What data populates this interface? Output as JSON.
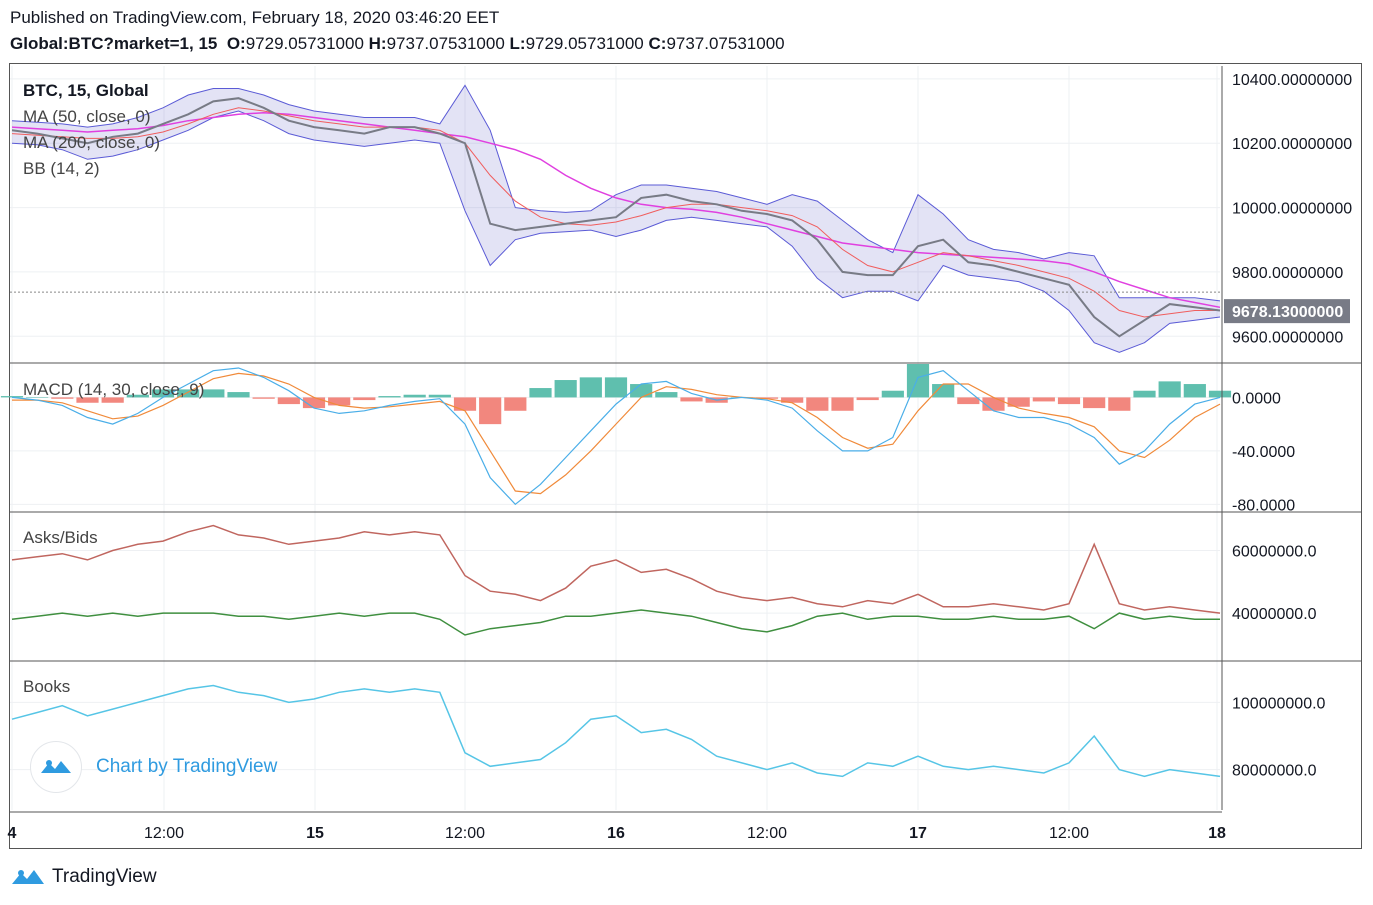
{
  "header": {
    "published": "Published on TradingView.com, February 18, 2020 03:46:20 EET",
    "symbol": "Global:BTC?market=1, 15",
    "o_label": "O:",
    "o_value": "9729.05731000",
    "h_label": "H:",
    "h_value": "9737.07531000",
    "l_label": "L:",
    "l_value": "9729.05731000",
    "c_label": "C:",
    "c_value": "9737.07531000"
  },
  "legend": {
    "title": "BTC, 15, Global",
    "ma50": "MA (50, close, 0)",
    "ma200": "MA (200, close, 0)",
    "bb": "BB (14, 2)",
    "macd": "MACD (14, 30, close, 9)",
    "asks_bids": "Asks/Bids",
    "books": "Books"
  },
  "price_tag": "9678.13000000",
  "watermark": "Chart by TradingView",
  "footer_brand": "TradingView",
  "icons": [
    "tradingview-logo-icon"
  ],
  "colors": {
    "price": "#787b86",
    "ma50": "#f05d5d",
    "ma200": "#e040e0",
    "bb": "#5b5bd6",
    "bb_fill": "rgba(100,100,200,0.18)",
    "macd": "#4aaee8",
    "signal": "#f08a3a",
    "hist_pos": "#5fbfae",
    "hist_neg": "#f2877e",
    "asks": "#c0665f",
    "bids": "#3f8f3f",
    "books": "#56c5e6"
  },
  "chart_data": [
    {
      "type": "line",
      "name": "price",
      "x_ticks": [
        "4",
        "12:00",
        "15",
        "12:00",
        "16",
        "12:00",
        "17",
        "12:00",
        "18"
      ],
      "y_ticks": [
        "10400.00000000",
        "10200.00000000",
        "10000.00000000",
        "9800.00000000",
        "9600.00000000"
      ],
      "ylim": [
        9520,
        10440
      ],
      "last": 9678.13,
      "price_line": 9737.08,
      "series": [
        {
          "name": "close",
          "values": [
            10240,
            10230,
            10215,
            10200,
            10220,
            10230,
            10260,
            10290,
            10330,
            10340,
            10310,
            10270,
            10250,
            10240,
            10230,
            10250,
            10250,
            10230,
            10200,
            9950,
            9930,
            9940,
            9950,
            9960,
            9970,
            10030,
            10040,
            10020,
            10010,
            9990,
            9980,
            9960,
            9900,
            9800,
            9790,
            9790,
            9880,
            9900,
            9830,
            9820,
            9800,
            9780,
            9760,
            9660,
            9600,
            9650,
            9700,
            9690,
            9680
          ]
        },
        {
          "name": "MA (50, close, 0)",
          "values": [
            10230,
            10225,
            10220,
            10215,
            10215,
            10220,
            10235,
            10260,
            10290,
            10310,
            10300,
            10285,
            10270,
            10260,
            10250,
            10250,
            10250,
            10240,
            10200,
            10100,
            10020,
            9970,
            9950,
            9945,
            9955,
            9975,
            10000,
            10010,
            10010,
            10000,
            9990,
            9975,
            9940,
            9870,
            9820,
            9800,
            9830,
            9860,
            9850,
            9835,
            9820,
            9800,
            9780,
            9740,
            9680,
            9660,
            9670,
            9680,
            9680
          ]
        },
        {
          "name": "MA (200, close, 0)",
          "values": [
            10250,
            10245,
            10240,
            10235,
            10240,
            10245,
            10255,
            10270,
            10280,
            10290,
            10295,
            10290,
            10280,
            10270,
            10260,
            10250,
            10240,
            10230,
            10220,
            10200,
            10180,
            10150,
            10100,
            10060,
            10030,
            10010,
            10000,
            9995,
            9985,
            9970,
            9950,
            9930,
            9910,
            9890,
            9880,
            9870,
            9860,
            9855,
            9850,
            9845,
            9840,
            9835,
            9825,
            9800,
            9770,
            9745,
            9720,
            9705,
            9690
          ]
        },
        {
          "name": "BB upper",
          "values": [
            10270,
            10265,
            10260,
            10250,
            10260,
            10280,
            10310,
            10350,
            10370,
            10370,
            10350,
            10320,
            10300,
            10290,
            10280,
            10280,
            10280,
            10260,
            10380,
            10240,
            10000,
            9990,
            9985,
            9990,
            10040,
            10070,
            10070,
            10060,
            10050,
            10030,
            10010,
            10040,
            10020,
            9960,
            9900,
            9860,
            10040,
            9980,
            9900,
            9870,
            9860,
            9840,
            9860,
            9850,
            9720,
            9720,
            9720,
            9720,
            9710
          ]
        },
        {
          "name": "BB lower",
          "values": [
            10200,
            10195,
            10180,
            10150,
            10160,
            10180,
            10210,
            10240,
            10280,
            10300,
            10270,
            10230,
            10210,
            10200,
            10190,
            10200,
            10210,
            10200,
            9990,
            9820,
            9900,
            9920,
            9925,
            9930,
            9910,
            9930,
            9960,
            9970,
            9960,
            9950,
            9940,
            9880,
            9780,
            9720,
            9740,
            9740,
            9710,
            9820,
            9790,
            9780,
            9770,
            9740,
            9680,
            9580,
            9550,
            9580,
            9640,
            9650,
            9660
          ]
        }
      ]
    },
    {
      "type": "bar",
      "name": "MACD (14, 30, close, 9)",
      "y_ticks": [
        "0.0000",
        "-40.0000",
        "-80.0000"
      ],
      "ylim": [
        -85,
        25
      ],
      "macd": [
        0,
        -2,
        -6,
        -15,
        -20,
        -12,
        0,
        10,
        20,
        22,
        15,
        5,
        -8,
        -12,
        -10,
        -6,
        -3,
        -1,
        -20,
        -60,
        -80,
        -65,
        -45,
        -25,
        -5,
        10,
        12,
        3,
        -2,
        0,
        -2,
        -8,
        -25,
        -40,
        -40,
        -30,
        15,
        20,
        5,
        -10,
        -15,
        -15,
        -20,
        -30,
        -50,
        -40,
        -20,
        -5,
        0
      ],
      "signal": [
        -2,
        -2,
        -4,
        -10,
        -16,
        -14,
        -6,
        4,
        14,
        18,
        16,
        10,
        0,
        -6,
        -8,
        -7,
        -5,
        -3,
        -10,
        -40,
        -70,
        -72,
        -58,
        -40,
        -20,
        0,
        8,
        6,
        2,
        0,
        -1,
        -4,
        -15,
        -30,
        -38,
        -35,
        -10,
        10,
        10,
        0,
        -8,
        -12,
        -15,
        -22,
        -40,
        -45,
        -32,
        -15,
        -5
      ],
      "histogram": [
        1,
        0,
        -1,
        -4,
        -4,
        2,
        6,
        6,
        6,
        4,
        -1,
        -5,
        -8,
        -6,
        -2,
        1,
        2,
        2,
        -10,
        -20,
        -10,
        7,
        13,
        15,
        15,
        10,
        4,
        -3,
        -4,
        0,
        -1,
        -4,
        -10,
        -10,
        -2,
        5,
        25,
        10,
        -5,
        -10,
        -7,
        -3,
        -5,
        -8,
        -10,
        5,
        12,
        10,
        5
      ]
    },
    {
      "type": "line",
      "name": "Asks/Bids",
      "y_ticks": [
        "60000000.0",
        "40000000.0"
      ],
      "ylim": [
        25000000,
        72000000
      ],
      "series": [
        {
          "name": "asks",
          "values": [
            57000000,
            58000000,
            59000000,
            57000000,
            60000000,
            62000000,
            63000000,
            66000000,
            68000000,
            65000000,
            64000000,
            62000000,
            63000000,
            64000000,
            66000000,
            65000000,
            66000000,
            65000000,
            52000000,
            47000000,
            46000000,
            44000000,
            48000000,
            55000000,
            57000000,
            53000000,
            54000000,
            51000000,
            47000000,
            45000000,
            44000000,
            45000000,
            43000000,
            42000000,
            44000000,
            43000000,
            46000000,
            42000000,
            42000000,
            43000000,
            42000000,
            41000000,
            43000000,
            62000000,
            43000000,
            41000000,
            42000000,
            41000000,
            40000000
          ]
        },
        {
          "name": "bids",
          "values": [
            38000000,
            39000000,
            40000000,
            39000000,
            40000000,
            39000000,
            40000000,
            40000000,
            40000000,
            39000000,
            39000000,
            38000000,
            39000000,
            40000000,
            39000000,
            40000000,
            40000000,
            38000000,
            33000000,
            35000000,
            36000000,
            37000000,
            39000000,
            39000000,
            40000000,
            41000000,
            40000000,
            39000000,
            37000000,
            35000000,
            34000000,
            36000000,
            39000000,
            40000000,
            38000000,
            39000000,
            39000000,
            38000000,
            38000000,
            39000000,
            38000000,
            38000000,
            39000000,
            35000000,
            40000000,
            38000000,
            39000000,
            38000000,
            38000000
          ]
        }
      ]
    },
    {
      "type": "line",
      "name": "Books",
      "y_ticks": [
        "100000000.0",
        "80000000.0"
      ],
      "ylim": [
        68000000,
        112000000
      ],
      "series": [
        {
          "name": "books",
          "values": [
            95000000,
            97000000,
            99000000,
            96000000,
            98000000,
            100000000,
            102000000,
            104000000,
            105000000,
            103000000,
            102000000,
            100000000,
            101000000,
            103000000,
            104000000,
            103000000,
            104000000,
            103000000,
            85000000,
            81000000,
            82000000,
            83000000,
            88000000,
            95000000,
            96000000,
            91000000,
            92000000,
            89000000,
            84000000,
            82000000,
            80000000,
            82000000,
            79000000,
            78000000,
            82000000,
            81000000,
            84000000,
            81000000,
            80000000,
            81000000,
            80000000,
            79000000,
            82000000,
            90000000,
            80000000,
            78000000,
            80000000,
            79000000,
            78000000
          ]
        }
      ]
    }
  ]
}
